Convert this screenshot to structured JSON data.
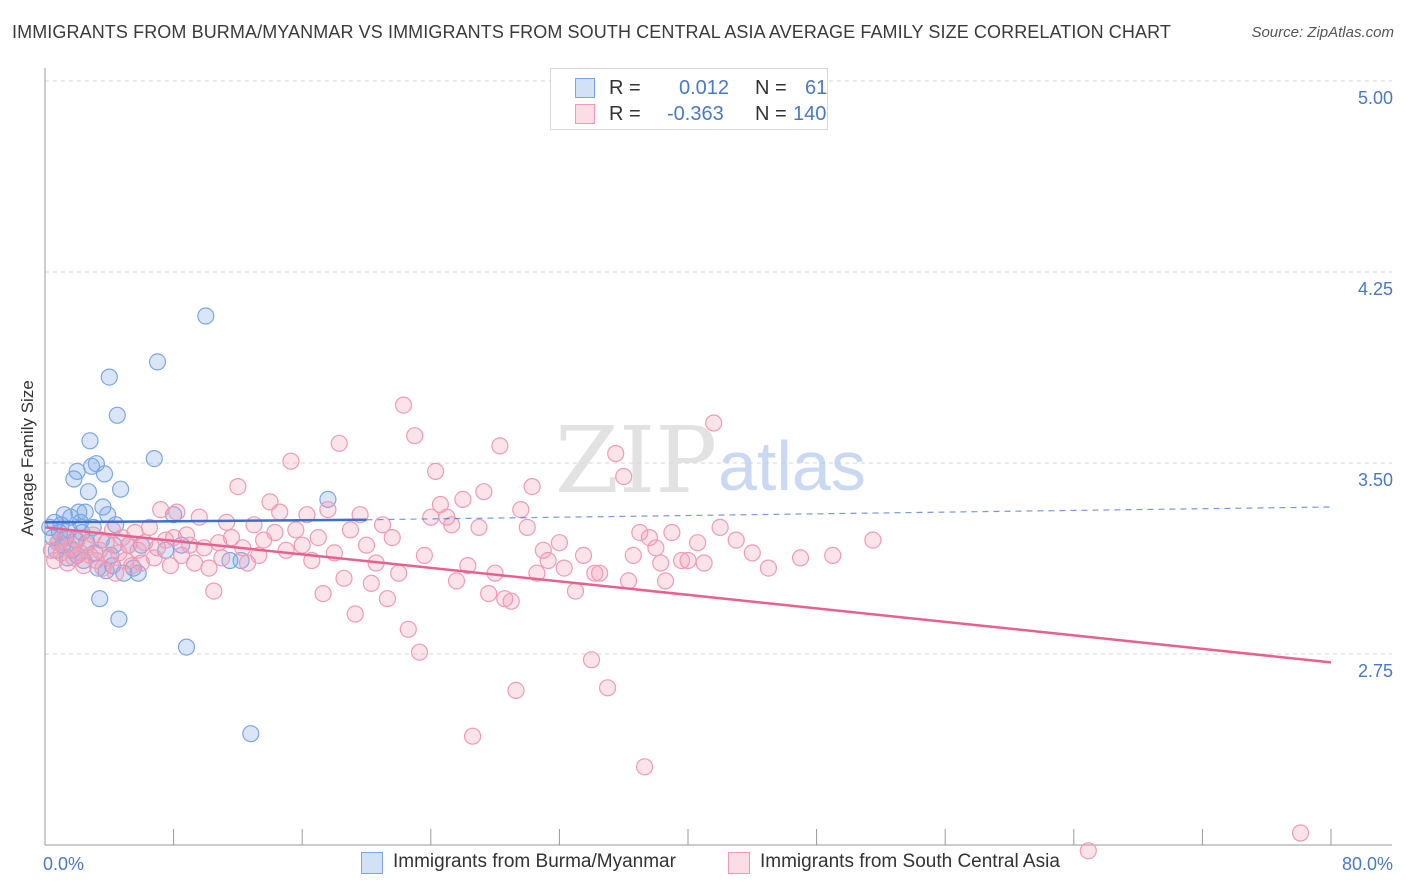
{
  "title": "IMMIGRANTS FROM BURMA/MYANMAR VS IMMIGRANTS FROM SOUTH CENTRAL ASIA AVERAGE FAMILY SIZE CORRELATION CHART",
  "source": "Source: ZipAtlas.com",
  "watermark": {
    "zip": "ZIP",
    "atlas": "atlas"
  },
  "legend_top": [
    {
      "r_label": "R =",
      "r_value": "0.012",
      "n_label": "N =",
      "n_value": "61",
      "color": "#7ba6e6"
    },
    {
      "r_label": "R =",
      "r_value": "-0.363",
      "n_label": "N =",
      "n_value": "140",
      "color": "#f29ab5"
    }
  ],
  "chart_data": {
    "type": "scatter",
    "title": "IMMIGRANTS FROM BURMA/MYANMAR VS IMMIGRANTS FROM SOUTH CENTRAL ASIA AVERAGE FAMILY SIZE CORRELATION CHART",
    "xlabel": "",
    "ylabel": "Average Family Size",
    "xlim": [
      0,
      80
    ],
    "ylim": [
      2.0,
      5.05
    ],
    "x_tick_labels": [
      "0.0%",
      "80.0%"
    ],
    "y_ticks": [
      2.75,
      3.5,
      4.25,
      5.0
    ],
    "y_tick_labels": [
      "2.75",
      "3.50",
      "4.25",
      "5.00"
    ],
    "grid": true,
    "series": [
      {
        "name": "Immigrants from Burma/Myanmar",
        "color": "#7ba6e6",
        "line_color": "#3c6fd0",
        "trend": {
          "x1": 0,
          "y1": 3.33,
          "x2": 20,
          "y2": 3.34,
          "dash_to_x": 80,
          "dash_to_y": 3.39
        },
        "points": [
          [
            0.3,
            3.31
          ],
          [
            0.5,
            3.27
          ],
          [
            0.6,
            3.33
          ],
          [
            0.7,
            3.22
          ],
          [
            0.8,
            3.25
          ],
          [
            0.9,
            3.29
          ],
          [
            1.0,
            3.32
          ],
          [
            1.1,
            3.24
          ],
          [
            1.2,
            3.36
          ],
          [
            1.3,
            3.27
          ],
          [
            1.4,
            3.19
          ],
          [
            1.5,
            3.3
          ],
          [
            1.6,
            3.35
          ],
          [
            1.7,
            3.22
          ],
          [
            1.8,
            3.5
          ],
          [
            1.9,
            3.26
          ],
          [
            2.0,
            3.53
          ],
          [
            2.1,
            3.37
          ],
          [
            2.2,
            3.33
          ],
          [
            2.3,
            3.29
          ],
          [
            2.4,
            3.18
          ],
          [
            2.5,
            3.37
          ],
          [
            2.6,
            3.25
          ],
          [
            2.7,
            3.45
          ],
          [
            2.8,
            3.65
          ],
          [
            2.9,
            3.55
          ],
          [
            3.0,
            3.31
          ],
          [
            3.1,
            3.21
          ],
          [
            3.2,
            3.56
          ],
          [
            3.3,
            3.15
          ],
          [
            3.4,
            3.03
          ],
          [
            3.5,
            3.26
          ],
          [
            3.6,
            3.39
          ],
          [
            3.7,
            3.52
          ],
          [
            3.8,
            3.14
          ],
          [
            3.9,
            3.36
          ],
          [
            4.0,
            3.9
          ],
          [
            4.1,
            3.2
          ],
          [
            4.2,
            3.16
          ],
          [
            4.3,
            3.24
          ],
          [
            4.4,
            3.32
          ],
          [
            4.5,
            3.75
          ],
          [
            4.6,
            2.95
          ],
          [
            4.7,
            3.46
          ],
          [
            4.9,
            3.13
          ],
          [
            5.2,
            3.24
          ],
          [
            5.5,
            3.15
          ],
          [
            5.8,
            3.13
          ],
          [
            6.0,
            3.24
          ],
          [
            6.8,
            3.58
          ],
          [
            7.0,
            3.96
          ],
          [
            7.5,
            3.22
          ],
          [
            8.0,
            3.36
          ],
          [
            8.5,
            3.24
          ],
          [
            8.8,
            2.84
          ],
          [
            10.0,
            4.14
          ],
          [
            11.5,
            3.18
          ],
          [
            12.2,
            3.18
          ],
          [
            12.8,
            2.5
          ],
          [
            17.6,
            3.42
          ],
          [
            2.0,
            3.2
          ]
        ]
      },
      {
        "name": "Immigrants from South Central Asia",
        "color": "#f29ab5",
        "line_color": "#e8608e",
        "trend": {
          "x1": 0,
          "y1": 3.31,
          "x2": 80,
          "y2": 2.78
        },
        "points": [
          [
            0.4,
            3.22
          ],
          [
            0.6,
            3.18
          ],
          [
            0.8,
            3.25
          ],
          [
            1.0,
            3.21
          ],
          [
            1.2,
            3.27
          ],
          [
            1.4,
            3.17
          ],
          [
            1.6,
            3.23
          ],
          [
            1.8,
            3.19
          ],
          [
            2.0,
            3.26
          ],
          [
            2.2,
            3.21
          ],
          [
            2.4,
            3.16
          ],
          [
            2.6,
            3.24
          ],
          [
            2.8,
            3.2
          ],
          [
            3.0,
            3.28
          ],
          [
            3.2,
            3.18
          ],
          [
            3.4,
            3.22
          ],
          [
            3.6,
            3.15
          ],
          [
            3.8,
            3.25
          ],
          [
            4.0,
            3.19
          ],
          [
            4.2,
            3.3
          ],
          [
            4.4,
            3.13
          ],
          [
            4.6,
            3.21
          ],
          [
            4.8,
            3.27
          ],
          [
            5.0,
            3.18
          ],
          [
            5.2,
            3.24
          ],
          [
            5.4,
            3.16
          ],
          [
            5.6,
            3.29
          ],
          [
            5.8,
            3.22
          ],
          [
            6.0,
            3.17
          ],
          [
            6.2,
            3.25
          ],
          [
            6.5,
            3.31
          ],
          [
            6.8,
            3.19
          ],
          [
            7.0,
            3.23
          ],
          [
            7.2,
            3.38
          ],
          [
            7.5,
            3.26
          ],
          [
            7.8,
            3.16
          ],
          [
            8.0,
            3.27
          ],
          [
            8.2,
            3.37
          ],
          [
            8.5,
            3.2
          ],
          [
            8.8,
            3.28
          ],
          [
            9.0,
            3.24
          ],
          [
            9.3,
            3.17
          ],
          [
            9.6,
            3.35
          ],
          [
            9.9,
            3.23
          ],
          [
            10.2,
            3.15
          ],
          [
            10.5,
            3.06
          ],
          [
            10.8,
            3.25
          ],
          [
            11.0,
            3.19
          ],
          [
            11.3,
            3.33
          ],
          [
            11.6,
            3.27
          ],
          [
            12.0,
            3.47
          ],
          [
            12.3,
            3.23
          ],
          [
            12.6,
            3.17
          ],
          [
            13.0,
            3.32
          ],
          [
            13.3,
            3.2
          ],
          [
            13.6,
            3.26
          ],
          [
            14.0,
            3.41
          ],
          [
            14.3,
            3.29
          ],
          [
            14.6,
            3.37
          ],
          [
            15.0,
            3.22
          ],
          [
            15.3,
            3.57
          ],
          [
            15.6,
            3.3
          ],
          [
            16.0,
            3.24
          ],
          [
            16.3,
            3.36
          ],
          [
            16.6,
            3.18
          ],
          [
            17.0,
            3.27
          ],
          [
            17.3,
            3.05
          ],
          [
            17.6,
            3.38
          ],
          [
            18.0,
            3.21
          ],
          [
            18.3,
            3.64
          ],
          [
            18.6,
            3.11
          ],
          [
            19.0,
            3.3
          ],
          [
            19.3,
            2.97
          ],
          [
            19.6,
            3.36
          ],
          [
            20.0,
            3.24
          ],
          [
            20.3,
            3.09
          ],
          [
            20.6,
            3.17
          ],
          [
            21.0,
            3.32
          ],
          [
            21.3,
            3.03
          ],
          [
            21.6,
            3.27
          ],
          [
            22.0,
            3.13
          ],
          [
            22.3,
            3.79
          ],
          [
            22.6,
            2.91
          ],
          [
            23.0,
            3.67
          ],
          [
            23.3,
            2.82
          ],
          [
            23.6,
            3.2
          ],
          [
            24.0,
            3.35
          ],
          [
            24.3,
            3.53
          ],
          [
            24.6,
            3.4
          ],
          [
            25.0,
            3.35
          ],
          [
            25.3,
            3.32
          ],
          [
            25.6,
            3.1
          ],
          [
            26.0,
            3.42
          ],
          [
            26.3,
            3.16
          ],
          [
            26.6,
            2.49
          ],
          [
            27.0,
            3.31
          ],
          [
            27.3,
            3.45
          ],
          [
            27.6,
            3.05
          ],
          [
            28.0,
            3.13
          ],
          [
            28.3,
            3.63
          ],
          [
            28.6,
            3.03
          ],
          [
            29.0,
            3.02
          ],
          [
            29.3,
            2.67
          ],
          [
            29.6,
            3.38
          ],
          [
            30.0,
            3.31
          ],
          [
            30.3,
            3.47
          ],
          [
            30.6,
            3.13
          ],
          [
            31.0,
            3.22
          ],
          [
            31.3,
            3.18
          ],
          [
            32.0,
            3.25
          ],
          [
            32.3,
            3.15
          ],
          [
            33.0,
            3.06
          ],
          [
            33.5,
            3.2
          ],
          [
            34.0,
            2.79
          ],
          [
            34.5,
            3.13
          ],
          [
            35.0,
            2.68
          ],
          [
            35.5,
            3.6
          ],
          [
            36.0,
            3.51
          ],
          [
            36.3,
            3.1
          ],
          [
            36.6,
            3.2
          ],
          [
            37.0,
            3.29
          ],
          [
            37.3,
            2.37
          ],
          [
            37.6,
            3.27
          ],
          [
            38.0,
            3.23
          ],
          [
            38.3,
            3.17
          ],
          [
            38.6,
            3.1
          ],
          [
            39.0,
            3.29
          ],
          [
            39.6,
            3.18
          ],
          [
            40.0,
            3.18
          ],
          [
            40.6,
            3.25
          ],
          [
            41.0,
            3.17
          ],
          [
            41.6,
            3.72
          ],
          [
            42.0,
            3.31
          ],
          [
            43.0,
            3.26
          ],
          [
            44.0,
            3.21
          ],
          [
            45.0,
            3.15
          ],
          [
            47.0,
            3.19
          ],
          [
            49.0,
            3.2
          ],
          [
            51.5,
            3.26
          ],
          [
            64.9,
            2.04
          ],
          [
            78.1,
            2.11
          ],
          [
            34.2,
            3.13
          ]
        ]
      }
    ]
  },
  "legend_bottom": [
    {
      "label": "Immigrants from Burma/Myanmar",
      "color": "#7ba6e6"
    },
    {
      "label": "Immigrants from South Central Asia",
      "color": "#f29ab5"
    }
  ]
}
